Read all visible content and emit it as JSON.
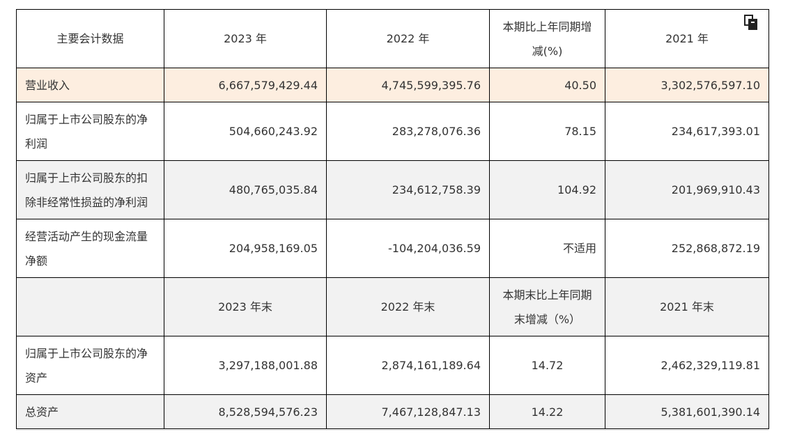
{
  "header": {
    "col0": "主要会计数据",
    "col1": "2023 年",
    "col2": "2022 年",
    "col3": "本期比上年同期增减(%)",
    "col4": "2021 年"
  },
  "rows": [
    {
      "label": "营业收入",
      "v2023": "6,667,579,429.44",
      "v2022": "4,745,599,395.76",
      "change": "40.50",
      "v2021": "3,302,576,597.10"
    },
    {
      "label": "归属于上市公司股东的净利润",
      "v2023": "504,660,243.92",
      "v2022": "283,278,076.36",
      "change": "78.15",
      "v2021": "234,617,393.01"
    },
    {
      "label": "归属于上市公司股东的扣除非经常性损益的净利润",
      "v2023": "480,765,035.84",
      "v2022": "234,612,758.39",
      "change": "104.92",
      "v2021": "201,969,910.43"
    },
    {
      "label": "经营活动产生的现金流量净额",
      "v2023": "204,958,169.05",
      "v2022": "-104,204,036.59",
      "change": "不适用",
      "v2021": "252,868,872.19"
    }
  ],
  "subheader": {
    "col0": "",
    "col1": "2023 年末",
    "col2": "2022 年末",
    "col3": "本期末比上年同期末增减（%）",
    "col4": "2021 年末"
  },
  "rows2": [
    {
      "label": "归属于上市公司股东的净资产",
      "v2023": "3,297,188,001.88",
      "v2022": "2,874,161,189.64",
      "change": "14.72",
      "v2021": "2,462,329,119.81"
    },
    {
      "label": "总资产",
      "v2023": "8,528,594,576.23",
      "v2022": "7,467,128,847.13",
      "change": "14.22",
      "v2021": "5,381,601,390.14"
    }
  ],
  "icons": {
    "copy": "copy-icon"
  }
}
